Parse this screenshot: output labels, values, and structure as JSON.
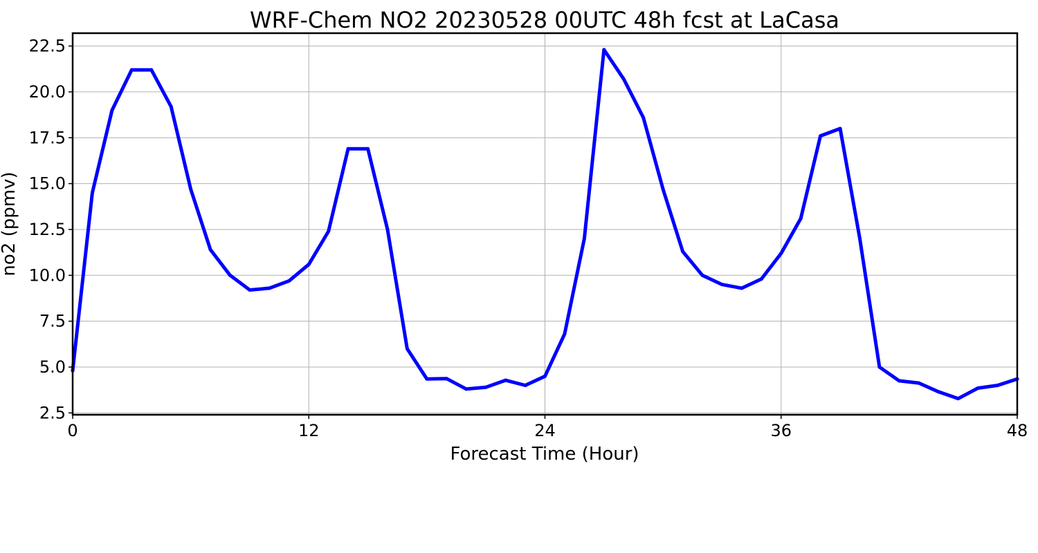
{
  "chart_data": {
    "type": "line",
    "title": "WRF-Chem NO2  20230528 00UTC 48h fcst at LaCasa",
    "xlabel": "Forecast Time (Hour)",
    "ylabel": "no2  (ppmv)",
    "xlim": [
      0,
      48
    ],
    "ylim": [
      2.4,
      23.2
    ],
    "xticks": [
      0,
      12,
      24,
      36,
      48
    ],
    "xtick_labels": [
      "0",
      "12",
      "24",
      "36",
      "48"
    ],
    "yticks": [
      2.5,
      5.0,
      7.5,
      10.0,
      12.5,
      15.0,
      17.5,
      20.0,
      22.5
    ],
    "ytick_labels": [
      "2.5",
      "5.0",
      "7.5",
      "10.0",
      "12.5",
      "15.0",
      "17.5",
      "20.0",
      "22.5"
    ],
    "grid": true,
    "series": [
      {
        "color": "#0000ff",
        "x": [
          0,
          1,
          2,
          3,
          4,
          5,
          6,
          7,
          8,
          9,
          10,
          11,
          12,
          13,
          14,
          15,
          16,
          17,
          18,
          19,
          20,
          21,
          22,
          23,
          24,
          25,
          26,
          27,
          28,
          29,
          30,
          31,
          32,
          33,
          34,
          35,
          36,
          37,
          38,
          39,
          40,
          41,
          42,
          43,
          44,
          45,
          46,
          47,
          48
        ],
        "values": [
          4.8,
          14.5,
          19.0,
          21.2,
          21.2,
          19.2,
          14.7,
          11.4,
          10.0,
          9.2,
          9.3,
          9.7,
          10.6,
          12.4,
          16.9,
          16.9,
          12.5,
          6.0,
          4.35,
          4.37,
          3.8,
          3.9,
          4.28,
          4.0,
          4.5,
          6.8,
          12.0,
          22.3,
          20.7,
          18.6,
          14.7,
          11.3,
          10.0,
          9.5,
          9.3,
          9.8,
          11.2,
          13.1,
          17.6,
          18.0,
          12.0,
          5.0,
          4.25,
          4.13,
          3.65,
          3.28,
          3.85,
          4.0,
          4.35
        ]
      }
    ]
  }
}
